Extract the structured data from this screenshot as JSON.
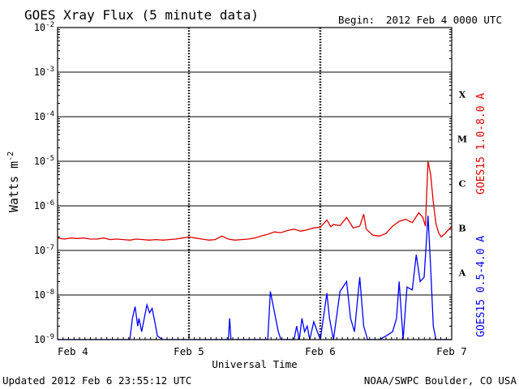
{
  "chart_data": {
    "type": "line",
    "title": "GOES Xray Flux (5 minute data)",
    "begin_label": "Begin:",
    "begin_value": "2012 Feb 4 0000 UTC",
    "ylabel_base": "Watts m",
    "ylabel_exp": "-2",
    "xlabel": "Universal Time",
    "yscale": "log",
    "ylim": [
      1e-09,
      0.01
    ],
    "xlim": [
      0,
      3
    ],
    "grid": true,
    "y_ticks": [
      {
        "base": "10",
        "exp": "-2"
      },
      {
        "base": "10",
        "exp": "-3"
      },
      {
        "base": "10",
        "exp": "-4"
      },
      {
        "base": "10",
        "exp": "-5"
      },
      {
        "base": "10",
        "exp": "-6"
      },
      {
        "base": "10",
        "exp": "-7"
      },
      {
        "base": "10",
        "exp": "-8"
      },
      {
        "base": "10",
        "exp": "-9"
      }
    ],
    "x_ticks": [
      "Feb 4",
      "Feb 5",
      "Feb 6",
      "Feb 7"
    ],
    "flare_classes": [
      "X",
      "M",
      "C",
      "B",
      "A"
    ],
    "series": [
      {
        "name": "GOES15 1.0-8.0 A",
        "color": "#e00000",
        "x": [
          0,
          0.05,
          0.1,
          0.15,
          0.2,
          0.25,
          0.3,
          0.35,
          0.4,
          0.45,
          0.5,
          0.55,
          0.6,
          0.65,
          0.7,
          0.75,
          0.8,
          0.85,
          0.9,
          0.95,
          1.0,
          1.05,
          1.1,
          1.15,
          1.2,
          1.25,
          1.3,
          1.35,
          1.4,
          1.45,
          1.5,
          1.55,
          1.6,
          1.65,
          1.7,
          1.75,
          1.8,
          1.85,
          1.9,
          1.95,
          2.0,
          2.05,
          2.08,
          2.1,
          2.15,
          2.2,
          2.25,
          2.3,
          2.33,
          2.35,
          2.4,
          2.45,
          2.5,
          2.55,
          2.6,
          2.65,
          2.7,
          2.75,
          2.78,
          2.8,
          2.82,
          2.84,
          2.86,
          2.88,
          2.9,
          2.92,
          2.95,
          3.0
        ],
        "y": [
          1.9e-07,
          1.8e-07,
          1.9e-07,
          1.85e-07,
          1.9e-07,
          1.8e-07,
          1.8e-07,
          1.9e-07,
          1.75e-07,
          1.8e-07,
          1.75e-07,
          1.7e-07,
          1.8e-07,
          1.75e-07,
          1.7e-07,
          1.75e-07,
          1.7e-07,
          1.75e-07,
          1.8e-07,
          1.9e-07,
          2e-07,
          1.9e-07,
          1.8e-07,
          1.7e-07,
          1.75e-07,
          2.1e-07,
          1.8e-07,
          1.7e-07,
          1.75e-07,
          1.8e-07,
          1.9e-07,
          2.1e-07,
          2.3e-07,
          2.6e-07,
          2.5e-07,
          2.8e-07,
          3e-07,
          2.7e-07,
          2.9e-07,
          3.2e-07,
          3.3e-07,
          4.8e-07,
          3.4e-07,
          3.8e-07,
          3.6e-07,
          5.5e-07,
          3.2e-07,
          3.5e-07,
          6.5e-07,
          3e-07,
          2.2e-07,
          2.1e-07,
          2.4e-07,
          3.5e-07,
          4.5e-07,
          5e-07,
          4.2e-07,
          7e-07,
          5.5e-07,
          3.5e-07,
          1e-05,
          5e-06,
          1.2e-06,
          4e-07,
          2.5e-07,
          2e-07,
          2.4e-07,
          3.5e-07
        ]
      },
      {
        "name": "GOES15 0.5-4.0 A",
        "color": "#0000ff",
        "x": [
          0,
          0.3,
          0.55,
          0.57,
          0.59,
          0.61,
          0.62,
          0.64,
          0.66,
          0.68,
          0.7,
          0.72,
          0.74,
          0.76,
          0.8,
          0.9,
          1.0,
          1.2,
          1.3,
          1.31,
          1.32,
          1.4,
          1.5,
          1.55,
          1.6,
          1.62,
          1.64,
          1.66,
          1.68,
          1.7,
          1.75,
          1.8,
          1.82,
          1.84,
          1.86,
          1.88,
          1.9,
          1.92,
          1.95,
          2.0,
          2.05,
          2.07,
          2.1,
          2.15,
          2.2,
          2.23,
          2.26,
          2.3,
          2.33,
          2.36,
          2.4,
          2.45,
          2.5,
          2.55,
          2.58,
          2.6,
          2.63,
          2.66,
          2.7,
          2.73,
          2.76,
          2.79,
          2.82,
          2.84,
          2.86,
          2.88,
          2.9,
          2.93,
          2.96,
          3.0
        ],
        "y": [
          1e-09,
          1e-09,
          1e-09,
          3e-09,
          5.5e-09,
          2e-09,
          3e-09,
          1.5e-09,
          3e-09,
          6e-09,
          4e-09,
          5e-09,
          2.5e-09,
          1.2e-09,
          1e-09,
          1e-09,
          1e-09,
          1e-09,
          1e-09,
          3e-09,
          1e-09,
          1e-09,
          1e-09,
          1e-09,
          1e-09,
          1.2e-08,
          6e-09,
          3e-09,
          1.5e-09,
          1e-09,
          1e-09,
          1e-09,
          2e-09,
          1e-09,
          3e-09,
          1.5e-09,
          2e-09,
          1e-09,
          2.5e-09,
          1e-09,
          1.1e-08,
          3e-09,
          1e-09,
          1.2e-08,
          2e-08,
          3e-09,
          1.5e-09,
          2.5e-08,
          2e-09,
          1e-09,
          1e-09,
          1e-09,
          1.2e-09,
          1.5e-09,
          3e-09,
          2e-08,
          1e-09,
          1.5e-08,
          1.3e-08,
          8e-08,
          2e-08,
          2.5e-08,
          6e-07,
          4e-08,
          2e-09,
          1e-09,
          1e-09,
          1e-09,
          1e-09,
          1e-09
        ]
      }
    ]
  },
  "footer": {
    "updated": "Updated 2012 Feb  6 23:55:12 UTC",
    "credit": "NOAA/SWPC Boulder, CO USA"
  }
}
